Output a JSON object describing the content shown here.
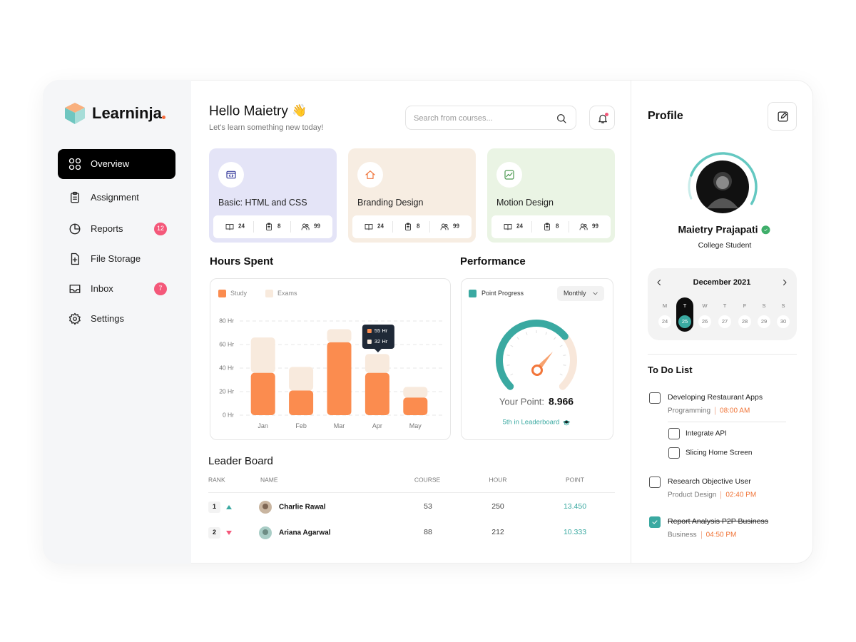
{
  "sidebar": {
    "brand": "Learninja",
    "menu": [
      {
        "label": "Overview",
        "active": true
      },
      {
        "label": "Assignment"
      },
      {
        "label": "Reports",
        "badge": 12
      },
      {
        "label": "File Storage"
      },
      {
        "label": "Inbox",
        "badge": 7
      },
      {
        "label": "Settings"
      }
    ]
  },
  "header": {
    "greeting": "Hello Maietry",
    "emoji": "👋",
    "subtitle": "Let's learn something new today!",
    "search_placeholder": "Search from courses..."
  },
  "courses": [
    {
      "title": "Basic: HTML and CSS",
      "lessons": 24,
      "tasks": 8,
      "members": 99,
      "color": "#e4e4f7"
    },
    {
      "title": "Branding Design",
      "lessons": 24,
      "tasks": 8,
      "members": 99,
      "color": "#f7ede2"
    },
    {
      "title": "Motion Design",
      "lessons": 24,
      "tasks": 8,
      "members": 99,
      "color": "#eaf4e4"
    }
  ],
  "chart_data": {
    "type": "bar",
    "stacked": true,
    "title": "Hours Spent",
    "categories": [
      "Jan",
      "Feb",
      "Mar",
      "Apr",
      "May"
    ],
    "series": [
      {
        "name": "Study",
        "color": "#fb8c4f",
        "values": [
          36,
          21,
          62,
          36,
          15
        ]
      },
      {
        "name": "Exams",
        "color": "#f8eadd",
        "values": [
          30,
          20,
          11,
          16,
          9
        ]
      }
    ],
    "ylim": [
      0,
      80
    ],
    "yticks": [
      {
        "value": 0,
        "label": "0 Hr"
      },
      {
        "value": 20,
        "label": "20 Hr"
      },
      {
        "value": 40,
        "label": "40 Hr"
      },
      {
        "value": 60,
        "label": "60 Hr"
      },
      {
        "value": 80,
        "label": "80 Hr"
      }
    ],
    "grid": true,
    "tooltip": [
      "55 Hr",
      "32 Hr"
    ]
  },
  "performance": {
    "title": "Performance",
    "legend": "Point Progress",
    "period": "Monthly",
    "point_label": "Your Point:",
    "point": 8.966,
    "rank": "5th in Leaderboard"
  },
  "leaderboard": {
    "title": "Leader Board",
    "columns": [
      "RANK",
      "NAME",
      "COURSE",
      "HOUR",
      "POINT"
    ],
    "rows": [
      {
        "rank": 1,
        "trend": "up",
        "name": "Charlie Rawal",
        "course": 53,
        "hour": 250,
        "point": "13.450"
      },
      {
        "rank": 2,
        "trend": "down",
        "name": "Ariana Agarwal",
        "course": 88,
        "hour": 212,
        "point": "10.333"
      }
    ]
  },
  "profile": {
    "title": "Profile",
    "name": "Maietry Prajapati",
    "role": "College Student"
  },
  "calendar": {
    "month": "December 2021",
    "weekdays": [
      "M",
      "T",
      "W",
      "T",
      "F",
      "S",
      "S"
    ],
    "dates": [
      24,
      25,
      26,
      27,
      28,
      29,
      30
    ],
    "selected": 25
  },
  "todo": {
    "title": "To Do List",
    "items": [
      {
        "title": "Developing Restaurant Apps",
        "category": "Programming",
        "time": "08:00 AM",
        "done": false,
        "subtasks": [
          {
            "title": "Integrate API",
            "done": false
          },
          {
            "title": "Slicing Home Screen",
            "done": false
          }
        ]
      },
      {
        "title": "Research Objective User",
        "category": "Product Design",
        "time": "02:40 PM",
        "done": false
      },
      {
        "title": "Report Analysis P2P Business",
        "category": "Business",
        "time": "04:50 PM",
        "done": true
      }
    ]
  }
}
